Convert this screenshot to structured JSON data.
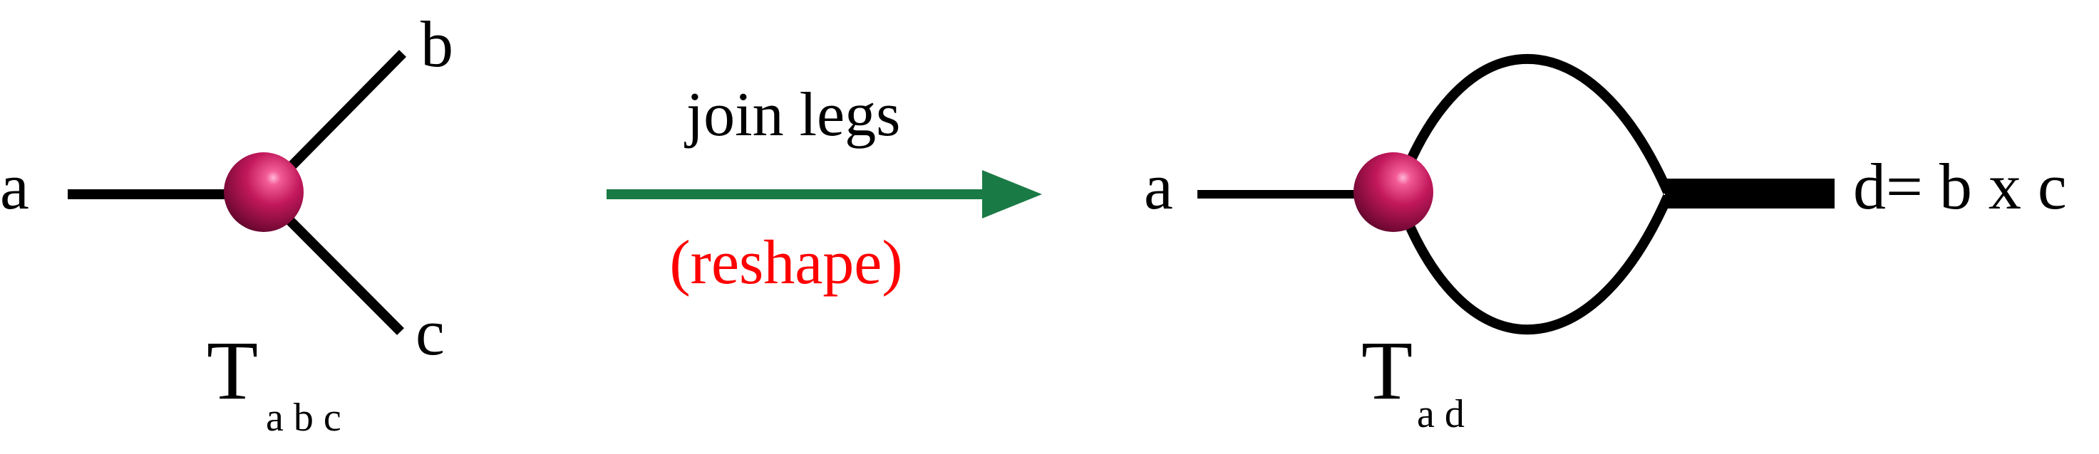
{
  "left_tensor": {
    "leg_a_label": "a",
    "leg_b_label": "b",
    "leg_c_label": "c",
    "name_letter": "T",
    "name_subscript": "a b c"
  },
  "operation": {
    "label": "join legs",
    "sublabel": "(reshape)",
    "sublabel_color": "#ff0000",
    "arrow_color": "#1a7a45"
  },
  "right_tensor": {
    "leg_a_label": "a",
    "leg_d_label": "d= b x c",
    "name_letter": "T",
    "name_subscript": "a d"
  },
  "node_color": "#c2185b"
}
